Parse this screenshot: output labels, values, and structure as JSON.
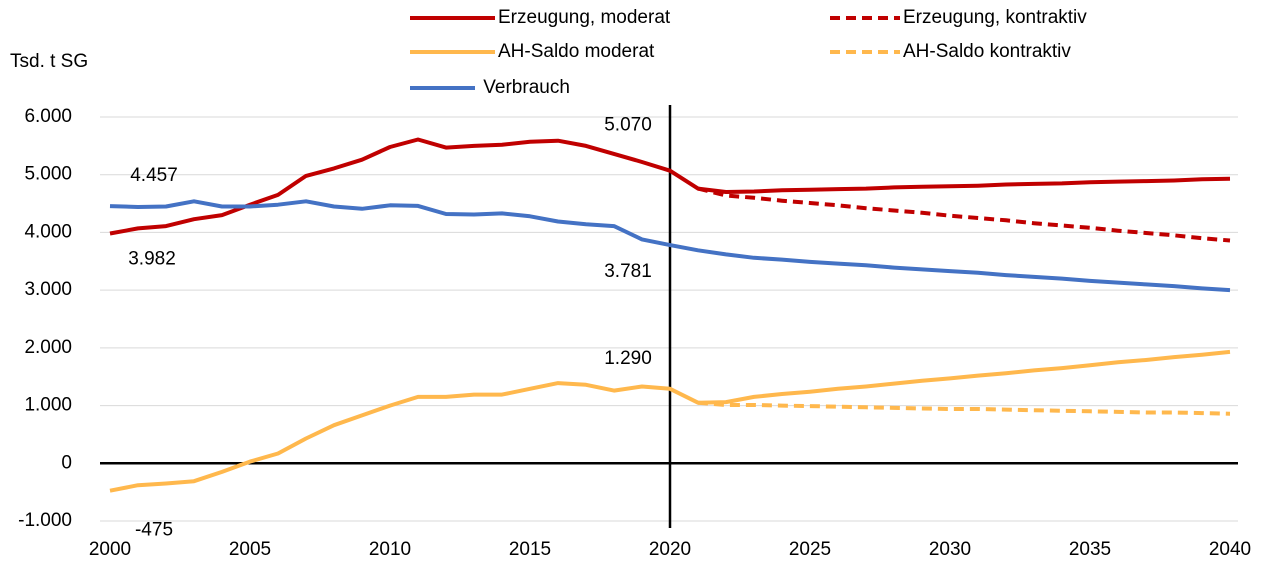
{
  "chart_data": {
    "type": "line",
    "y_label": "Tsd. t SG",
    "x": [
      2000,
      2001,
      2002,
      2003,
      2004,
      2005,
      2006,
      2007,
      2008,
      2009,
      2010,
      2011,
      2012,
      2013,
      2014,
      2015,
      2016,
      2017,
      2018,
      2019,
      2020,
      2021,
      2022,
      2023,
      2024,
      2025,
      2026,
      2027,
      2028,
      2029,
      2030,
      2031,
      2032,
      2033,
      2034,
      2035,
      2036,
      2037,
      2038,
      2039,
      2040
    ],
    "series": [
      {
        "name": "Erzeugung, moderat",
        "color": "#c00000",
        "dash": false,
        "values": [
          3982,
          4070,
          4110,
          4230,
          4300,
          4480,
          4650,
          4980,
          5110,
          5260,
          5480,
          5610,
          5470,
          5500,
          5520,
          5570,
          5590,
          5500,
          5360,
          5220,
          5070,
          4760,
          4700,
          4710,
          4730,
          4740,
          4750,
          4760,
          4780,
          4790,
          4800,
          4810,
          4830,
          4840,
          4850,
          4870,
          4880,
          4890,
          4900,
          4920,
          4930
        ],
        "value_labels": [
          "3.982",
          null,
          null,
          null,
          null,
          null,
          null,
          null,
          null,
          null,
          null,
          null,
          null,
          null,
          null,
          null,
          null,
          null,
          null,
          null,
          "5.070",
          null,
          null,
          null,
          null,
          null,
          null,
          null,
          null,
          null,
          null,
          null,
          null,
          null,
          null,
          null,
          null,
          null,
          null,
          null,
          null
        ]
      },
      {
        "name": "Erzeugung, kontraktiv",
        "color": "#c00000",
        "dash": true,
        "values": [
          null,
          null,
          null,
          null,
          null,
          null,
          null,
          null,
          null,
          null,
          null,
          null,
          null,
          null,
          null,
          null,
          null,
          null,
          null,
          null,
          null,
          4760,
          4640,
          4600,
          4550,
          4510,
          4470,
          4420,
          4380,
          4340,
          4290,
          4250,
          4210,
          4160,
          4120,
          4080,
          4030,
          3990,
          3950,
          3900,
          3860
        ]
      },
      {
        "name": "AH-Saldo moderat",
        "color": "#ffb84d",
        "dash": false,
        "values": [
          -475,
          -380,
          -350,
          -310,
          -150,
          30,
          170,
          430,
          660,
          830,
          1000,
          1150,
          1150,
          1190,
          1190,
          1290,
          1390,
          1360,
          1260,
          1330,
          1290,
          1050,
          1060,
          1150,
          1200,
          1240,
          1290,
          1330,
          1380,
          1430,
          1470,
          1520,
          1560,
          1610,
          1650,
          1700,
          1750,
          1790,
          1840,
          1880,
          1930
        ],
        "value_labels": [
          "-475",
          null,
          null,
          null,
          null,
          null,
          null,
          null,
          null,
          null,
          null,
          null,
          null,
          null,
          null,
          null,
          null,
          null,
          null,
          null,
          "1.290",
          null,
          null,
          null,
          null,
          null,
          null,
          null,
          null,
          null,
          null,
          null,
          null,
          null,
          null,
          null,
          null,
          null,
          null,
          null,
          null
        ]
      },
      {
        "name": "AH-Saldo kontraktiv",
        "color": "#ffb84d",
        "dash": true,
        "values": [
          null,
          null,
          null,
          null,
          null,
          null,
          null,
          null,
          null,
          null,
          null,
          null,
          null,
          null,
          null,
          null,
          null,
          null,
          null,
          null,
          null,
          1050,
          1010,
          1010,
          1000,
          990,
          980,
          970,
          960,
          950,
          940,
          940,
          930,
          920,
          910,
          900,
          890,
          880,
          880,
          870,
          860
        ]
      },
      {
        "name": " Verbrauch",
        "color": "#4472c4",
        "dash": false,
        "values": [
          4457,
          4440,
          4450,
          4540,
          4450,
          4450,
          4480,
          4540,
          4450,
          4410,
          4470,
          4460,
          4320,
          4310,
          4330,
          4280,
          4190,
          4140,
          4110,
          3880,
          3781,
          3690,
          3620,
          3560,
          3530,
          3490,
          3460,
          3430,
          3390,
          3360,
          3330,
          3300,
          3260,
          3230,
          3200,
          3160,
          3130,
          3100,
          3070,
          3030,
          3000
        ],
        "value_labels": [
          "4.457",
          null,
          null,
          null,
          null,
          null,
          null,
          null,
          null,
          null,
          null,
          null,
          null,
          null,
          null,
          null,
          null,
          null,
          null,
          null,
          "3.781",
          null,
          null,
          null,
          null,
          null,
          null,
          null,
          null,
          null,
          null,
          null,
          null,
          null,
          null,
          null,
          null,
          null,
          null,
          null,
          null
        ]
      }
    ],
    "vline": 2020,
    "xlim": [
      2000,
      2040
    ],
    "xticks": [
      2000,
      2005,
      2010,
      2015,
      2020,
      2025,
      2030,
      2035,
      2040
    ],
    "ylim": [
      -1000,
      6000
    ],
    "yticks": [
      {
        "value": -1000,
        "label": "-1.000"
      },
      0,
      {
        "value": 1000,
        "label": "1.000"
      },
      {
        "value": 2000,
        "label": "2.000"
      },
      {
        "value": 3000,
        "label": "3.000"
      },
      {
        "value": 4000,
        "label": "4.000"
      },
      {
        "value": 5000,
        "label": "5.000"
      },
      {
        "value": 6000,
        "label": "6.000"
      }
    ],
    "grid": true
  }
}
